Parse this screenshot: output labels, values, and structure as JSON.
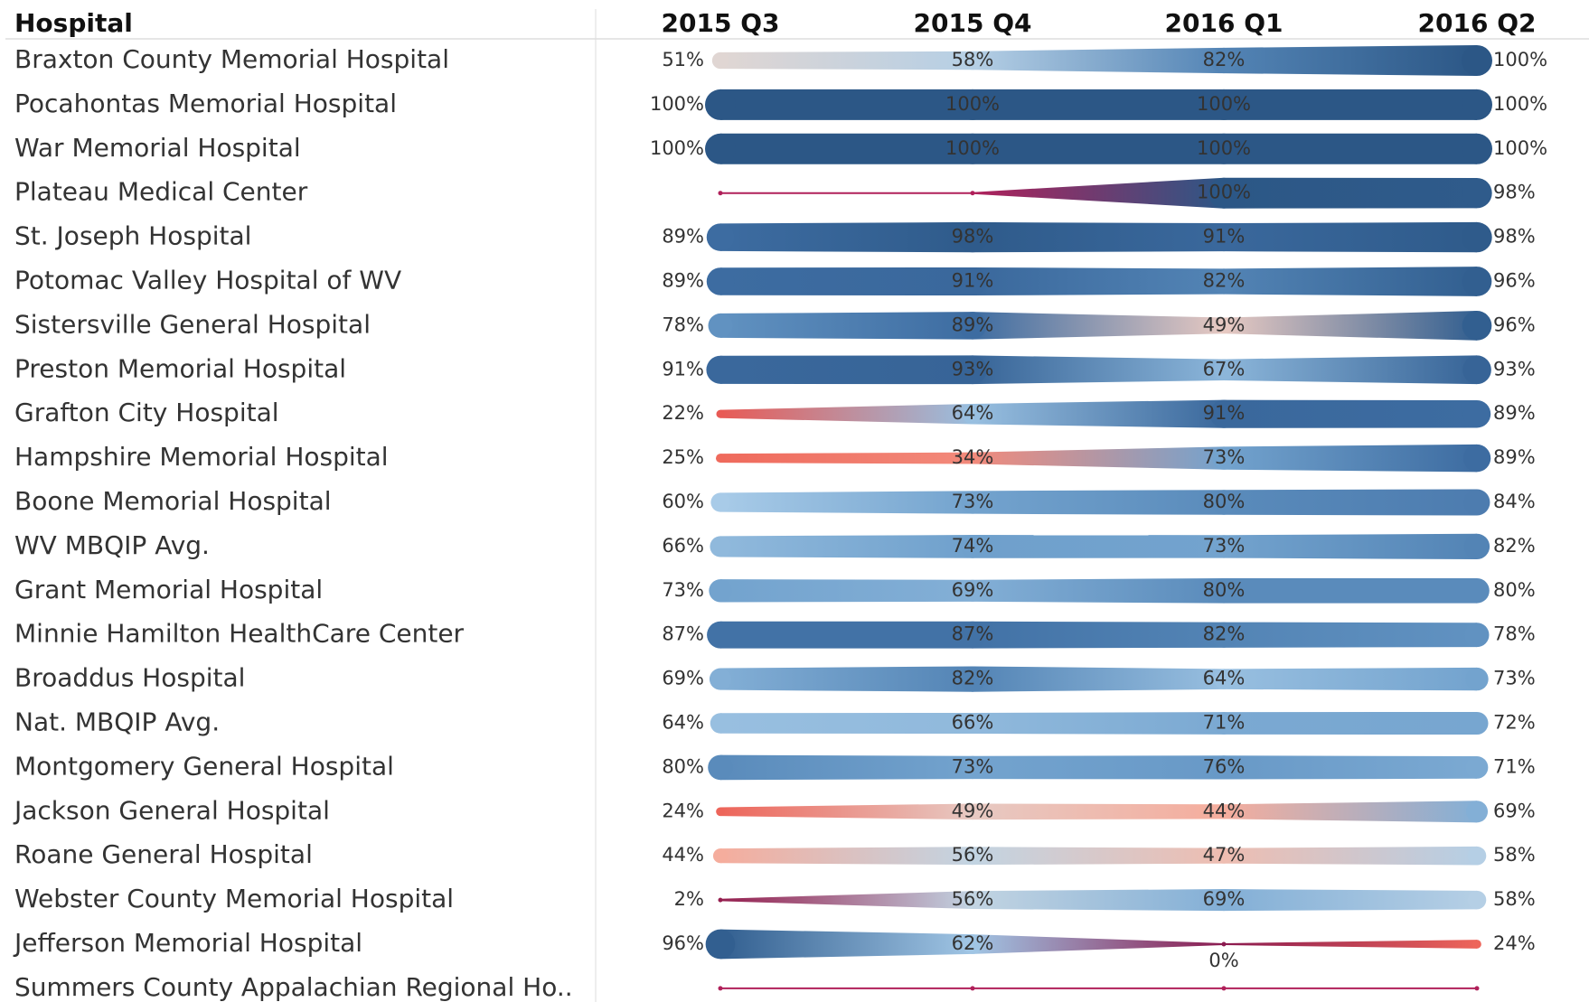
{
  "chart_data": {
    "type": "line",
    "header": "Hospital",
    "categories": [
      "2015 Q3",
      "2015 Q4",
      "2016 Q1",
      "2016 Q2"
    ],
    "series": [
      {
        "name": "Braxton County Memorial Hospital",
        "values": [
          51,
          58,
          82,
          100
        ],
        "value_labels": [
          "51%",
          "58%",
          "82%",
          "100%"
        ]
      },
      {
        "name": "Pocahontas Memorial Hospital",
        "values": [
          100,
          100,
          100,
          100
        ],
        "value_labels": [
          "100%",
          "100%",
          "100%",
          "100%"
        ]
      },
      {
        "name": "War Memorial Hospital",
        "values": [
          100,
          100,
          100,
          100
        ],
        "value_labels": [
          "100%",
          "100%",
          "100%",
          "100%"
        ]
      },
      {
        "name": "Plateau Medical Center",
        "values": [
          null,
          null,
          100,
          98
        ],
        "value_labels": [
          null,
          null,
          "100%",
          "98%"
        ]
      },
      {
        "name": "St. Joseph Hospital",
        "values": [
          89,
          98,
          91,
          98
        ],
        "value_labels": [
          "89%",
          "98%",
          "91%",
          "98%"
        ]
      },
      {
        "name": "Potomac Valley Hospital of WV",
        "values": [
          89,
          91,
          82,
          96
        ],
        "value_labels": [
          "89%",
          "91%",
          "82%",
          "96%"
        ]
      },
      {
        "name": "Sistersville General Hospital",
        "values": [
          78,
          89,
          49,
          96
        ],
        "value_labels": [
          "78%",
          "89%",
          "49%",
          "96%"
        ]
      },
      {
        "name": "Preston Memorial Hospital",
        "values": [
          91,
          93,
          67,
          93
        ],
        "value_labels": [
          "91%",
          "93%",
          "67%",
          "93%"
        ]
      },
      {
        "name": "Grafton City Hospital",
        "values": [
          22,
          64,
          91,
          89
        ],
        "value_labels": [
          "22%",
          "64%",
          "91%",
          "89%"
        ]
      },
      {
        "name": "Hampshire Memorial Hospital",
        "values": [
          25,
          34,
          73,
          89
        ],
        "value_labels": [
          "25%",
          "34%",
          "73%",
          "89%"
        ]
      },
      {
        "name": "Boone Memorial Hospital",
        "values": [
          60,
          73,
          80,
          84
        ],
        "value_labels": [
          "60%",
          "73%",
          "80%",
          "84%"
        ]
      },
      {
        "name": "WV MBQIP Avg.",
        "values": [
          66,
          74,
          73,
          82
        ],
        "value_labels": [
          "66%",
          "74%",
          "73%",
          "82%"
        ]
      },
      {
        "name": "Grant Memorial Hospital",
        "values": [
          73,
          69,
          80,
          80
        ],
        "value_labels": [
          "73%",
          "69%",
          "80%",
          "80%"
        ]
      },
      {
        "name": "Minnie Hamilton HealthCare Center",
        "values": [
          87,
          87,
          82,
          78
        ],
        "value_labels": [
          "87%",
          "87%",
          "82%",
          "78%"
        ]
      },
      {
        "name": "Broaddus Hospital",
        "values": [
          69,
          82,
          64,
          73
        ],
        "value_labels": [
          "69%",
          "82%",
          "64%",
          "73%"
        ]
      },
      {
        "name": "Nat. MBQIP Avg.",
        "values": [
          64,
          66,
          71,
          72
        ],
        "value_labels": [
          "64%",
          "66%",
          "71%",
          "72%"
        ]
      },
      {
        "name": "Montgomery General Hospital",
        "values": [
          80,
          73,
          76,
          71
        ],
        "value_labels": [
          "80%",
          "73%",
          "76%",
          "71%"
        ]
      },
      {
        "name": "Jackson General Hospital",
        "values": [
          24,
          49,
          44,
          69
        ],
        "value_labels": [
          "24%",
          "49%",
          "44%",
          "69%"
        ]
      },
      {
        "name": "Roane General Hospital",
        "values": [
          44,
          56,
          47,
          58
        ],
        "value_labels": [
          "44%",
          "56%",
          "47%",
          "58%"
        ]
      },
      {
        "name": "Webster County Memorial Hospital",
        "values": [
          2,
          56,
          69,
          58
        ],
        "value_labels": [
          "2%",
          "56%",
          "69%",
          "58%"
        ]
      },
      {
        "name": "Jefferson Memorial Hospital",
        "values": [
          96,
          62,
          0,
          24
        ],
        "value_labels": [
          "96%",
          "62%",
          "0%",
          "24%"
        ]
      },
      {
        "name": "Summers County Appalachian Regional Ho..",
        "values": [
          null,
          null,
          null,
          null
        ],
        "value_labels": [
          null,
          null,
          null,
          null
        ]
      }
    ]
  }
}
